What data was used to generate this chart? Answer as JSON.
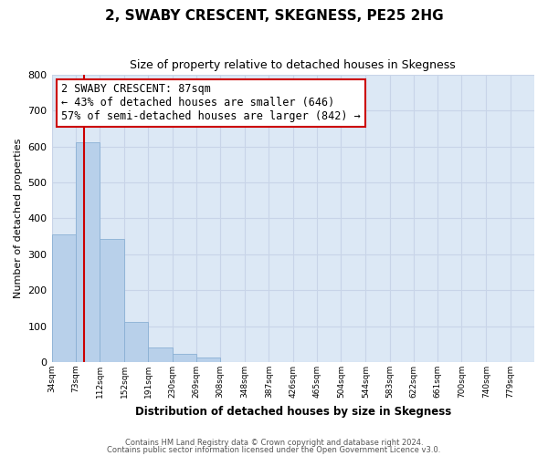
{
  "title": "2, SWABY CRESCENT, SKEGNESS, PE25 2HG",
  "subtitle": "Size of property relative to detached houses in Skegness",
  "xlabel": "Distribution of detached houses by size in Skegness",
  "ylabel": "Number of detached properties",
  "bar_edges": [
    34,
    73,
    112,
    152,
    191,
    230,
    269,
    308,
    348,
    387,
    426,
    465,
    504,
    544,
    583,
    622,
    661,
    700,
    740,
    779,
    818
  ],
  "bar_heights": [
    355,
    612,
    342,
    113,
    40,
    22,
    14,
    1,
    0,
    0,
    0,
    0,
    0,
    0,
    0,
    0,
    0,
    0,
    0,
    1
  ],
  "bar_color": "#b8d0ea",
  "bar_edge_color": "#8ab0d4",
  "property_line_x": 87,
  "property_line_color": "#cc0000",
  "ylim": [
    0,
    800
  ],
  "yticks": [
    0,
    100,
    200,
    300,
    400,
    500,
    600,
    700,
    800
  ],
  "annotation_title": "2 SWABY CRESCENT: 87sqm",
  "annotation_line1": "← 43% of detached houses are smaller (646)",
  "annotation_line2": "57% of semi-detached houses are larger (842) →",
  "annotation_box_facecolor": "#ffffff",
  "annotation_box_edgecolor": "#cc0000",
  "grid_color": "#c8d4e8",
  "plot_bg_color": "#dce8f5",
  "fig_bg_color": "#ffffff",
  "footer1": "Contains HM Land Registry data © Crown copyright and database right 2024.",
  "footer2": "Contains public sector information licensed under the Open Government Licence v3.0."
}
